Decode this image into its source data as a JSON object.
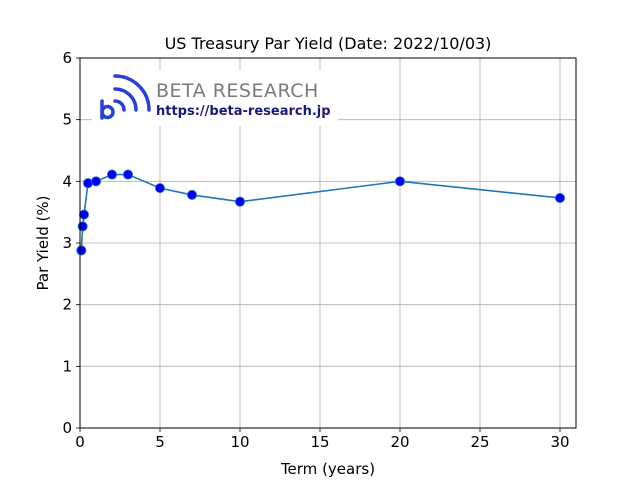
{
  "chart_data": {
    "type": "line",
    "title": "US Treasury Par Yield (Date: 2022/10/03)",
    "xlabel": "Term (years)",
    "ylabel": "Par Yield (%)",
    "xlim": [
      0,
      31
    ],
    "ylim": [
      0,
      6
    ],
    "xticks": [
      0,
      5,
      10,
      15,
      20,
      25,
      30
    ],
    "yticks": [
      0,
      1,
      2,
      3,
      4,
      5,
      6
    ],
    "grid": true,
    "series": [
      {
        "x": [
          0.0833,
          0.1667,
          0.25,
          0.5,
          1,
          2,
          3,
          5,
          7,
          10,
          20,
          30
        ],
        "y": [
          2.88,
          3.27,
          3.46,
          3.97,
          4.0,
          4.11,
          4.11,
          3.89,
          3.78,
          3.67,
          4.0,
          3.73
        ],
        "line_color": "#1f77b4",
        "marker_color": "#0000ff"
      }
    ]
  },
  "watermark": {
    "brand": "BETA RESEARCH",
    "url": "https://beta-research.jp",
    "icon": "beta-research-logo-icon",
    "icon_color": "#2b3fd6"
  }
}
